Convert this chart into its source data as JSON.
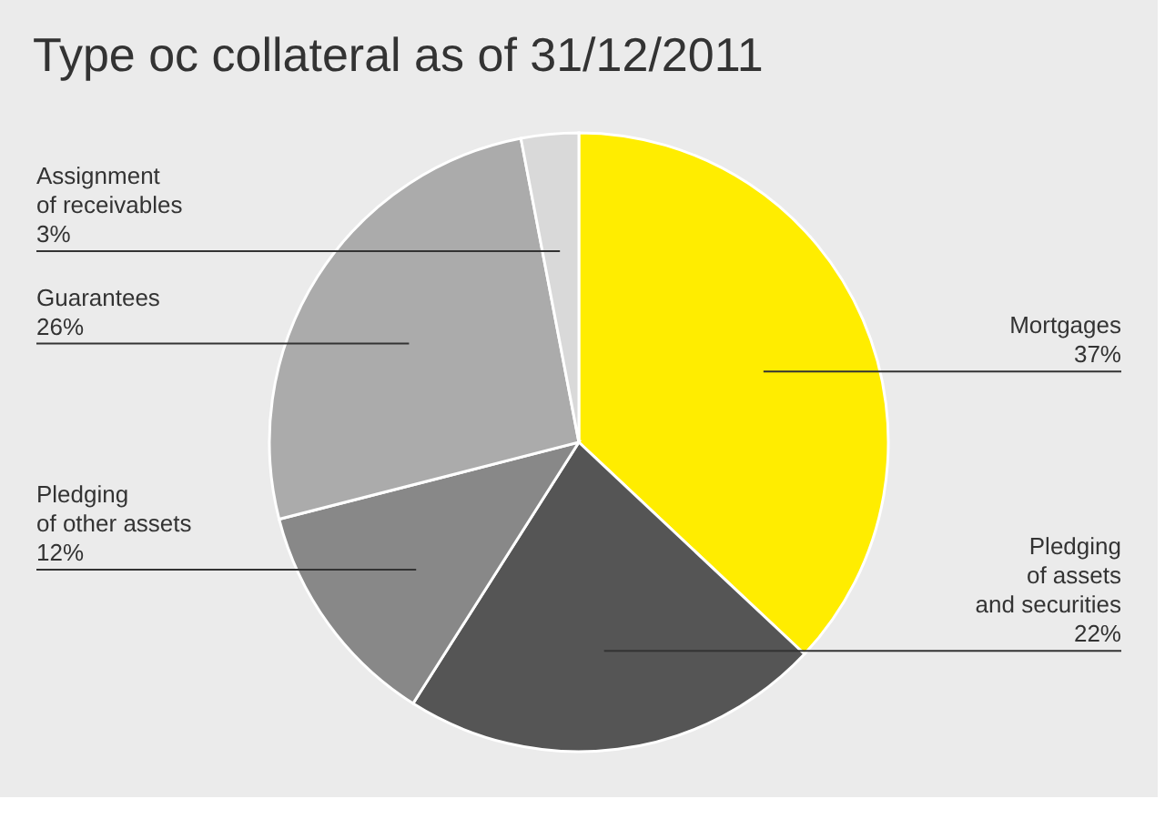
{
  "chart_data": {
    "type": "pie",
    "title": "Type oc collateral as of 31/12/2011",
    "categories": [
      "Mortgages",
      "Pledging\nof assets\nand securities",
      "Pledging\nof other assets",
      "Guarantees",
      "Assignment\nof receivables"
    ],
    "values": [
      37,
      22,
      12,
      26,
      3
    ],
    "colors": [
      "#ffed00",
      "#555555",
      "#888888",
      "#ababab",
      "#d9d9d9"
    ],
    "value_labels": [
      "37%",
      "22%",
      "12%",
      "26%",
      "3%"
    ]
  }
}
